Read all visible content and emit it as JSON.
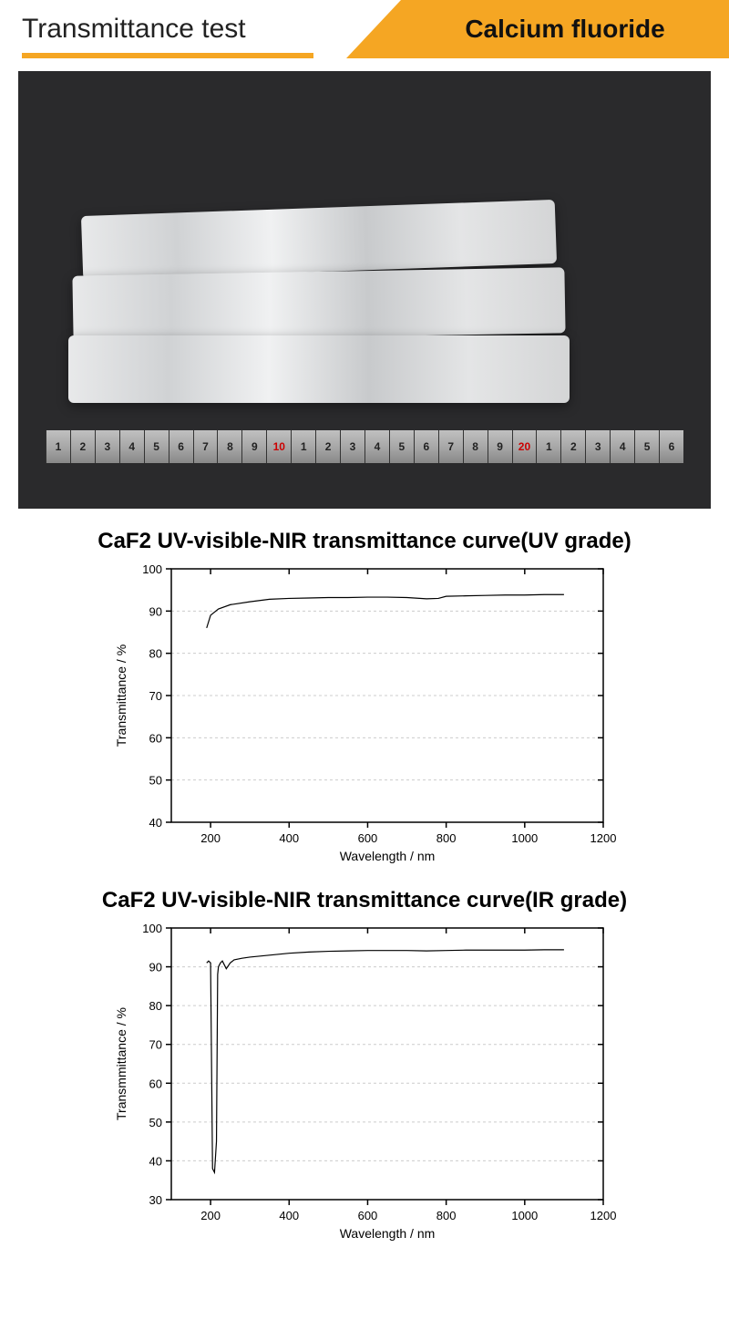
{
  "header": {
    "left_title": "Transmittance test",
    "right_title": "Calcium fluoride",
    "accent_color": "#f5a623",
    "underline_color": "#f5a623"
  },
  "photo": {
    "description": "Calcium fluoride crystal rods on dark surface with steel ruler",
    "ruler_labels": [
      "1",
      "2",
      "3",
      "4",
      "5",
      "6",
      "7",
      "8",
      "9",
      "10",
      "1",
      "2",
      "3",
      "4",
      "5",
      "6",
      "7",
      "8",
      "9",
      "20",
      "1",
      "2",
      "3",
      "4",
      "5",
      "6"
    ],
    "ruler_red_indices": [
      9,
      19
    ]
  },
  "chart1": {
    "title": "CaF2 UV-visible-NIR transmittance curve(UV grade)",
    "type": "line",
    "xlabel": "Wavelength / nm",
    "ylabel": "Transmittance / %",
    "xlim": [
      100,
      1200
    ],
    "ylim": [
      40,
      100
    ],
    "xticks": [
      200,
      400,
      600,
      800,
      1000,
      1200
    ],
    "yticks": [
      40,
      50,
      60,
      70,
      80,
      90,
      100
    ],
    "grid_color": "#cccccc",
    "border_color": "#000000",
    "line_color": "#000000",
    "line_width": 1.2,
    "background_color": "#ffffff",
    "tick_fontsize": 13,
    "label_fontsize": 14,
    "data": [
      [
        190,
        86
      ],
      [
        200,
        89
      ],
      [
        220,
        90.5
      ],
      [
        250,
        91.5
      ],
      [
        300,
        92.2
      ],
      [
        350,
        92.8
      ],
      [
        400,
        93
      ],
      [
        450,
        93.1
      ],
      [
        500,
        93.2
      ],
      [
        550,
        93.2
      ],
      [
        600,
        93.3
      ],
      [
        650,
        93.3
      ],
      [
        700,
        93.2
      ],
      [
        750,
        92.9
      ],
      [
        780,
        93
      ],
      [
        800,
        93.5
      ],
      [
        850,
        93.6
      ],
      [
        900,
        93.7
      ],
      [
        950,
        93.8
      ],
      [
        1000,
        93.8
      ],
      [
        1050,
        93.9
      ],
      [
        1100,
        93.9
      ]
    ]
  },
  "chart2": {
    "title": "CaF2 UV-visible-NIR transmittance curve(IR grade)",
    "type": "line",
    "xlabel": "Wavelength / nm",
    "ylabel": "Transmmittance / %",
    "xlim": [
      100,
      1200
    ],
    "ylim": [
      30,
      100
    ],
    "xticks": [
      200,
      400,
      600,
      800,
      1000,
      1200
    ],
    "yticks": [
      30,
      40,
      50,
      60,
      70,
      80,
      90,
      100
    ],
    "grid_color": "#cccccc",
    "border_color": "#000000",
    "line_color": "#000000",
    "line_width": 1.2,
    "background_color": "#ffffff",
    "tick_fontsize": 13,
    "label_fontsize": 14,
    "data": [
      [
        190,
        91
      ],
      [
        195,
        91.5
      ],
      [
        200,
        91
      ],
      [
        205,
        38
      ],
      [
        210,
        37
      ],
      [
        215,
        45
      ],
      [
        218,
        88
      ],
      [
        220,
        90
      ],
      [
        225,
        91
      ],
      [
        230,
        91.5
      ],
      [
        240,
        89.5
      ],
      [
        250,
        91
      ],
      [
        260,
        91.8
      ],
      [
        280,
        92.2
      ],
      [
        300,
        92.5
      ],
      [
        350,
        93
      ],
      [
        400,
        93.5
      ],
      [
        450,
        93.8
      ],
      [
        500,
        94
      ],
      [
        550,
        94.1
      ],
      [
        600,
        94.2
      ],
      [
        650,
        94.2
      ],
      [
        700,
        94.2
      ],
      [
        750,
        94.1
      ],
      [
        800,
        94.2
      ],
      [
        850,
        94.3
      ],
      [
        900,
        94.3
      ],
      [
        950,
        94.3
      ],
      [
        1000,
        94.3
      ],
      [
        1050,
        94.4
      ],
      [
        1100,
        94.4
      ]
    ]
  }
}
